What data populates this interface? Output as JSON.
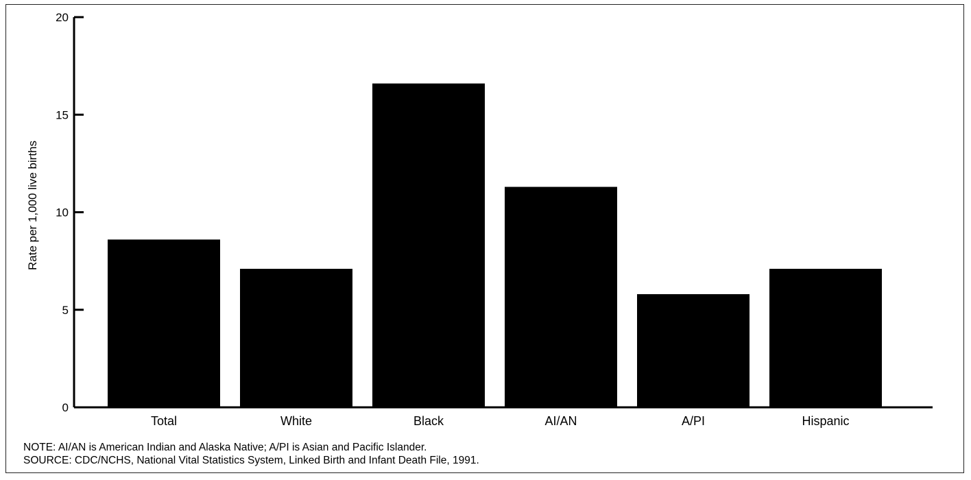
{
  "chart_data": {
    "type": "bar",
    "categories": [
      "Total",
      "White",
      "Black",
      "AI/AN",
      "A/PI",
      "Hispanic"
    ],
    "values": [
      8.6,
      7.1,
      16.6,
      11.3,
      5.8,
      7.1
    ],
    "title": "",
    "xlabel": "",
    "ylabel": "Rate per 1,000 live births",
    "ylim": [
      0,
      20
    ],
    "yticks": [
      0,
      5,
      10,
      15,
      20
    ],
    "grid": false,
    "bar_color": "#000000"
  },
  "notes": {
    "note": "NOTE: AI/AN is American Indian and Alaska Native; A/PI is Asian and Pacific Islander.",
    "source": "SOURCE: CDC/NCHS, National Vital Statistics System, Linked Birth and Infant Death File, 1991."
  }
}
